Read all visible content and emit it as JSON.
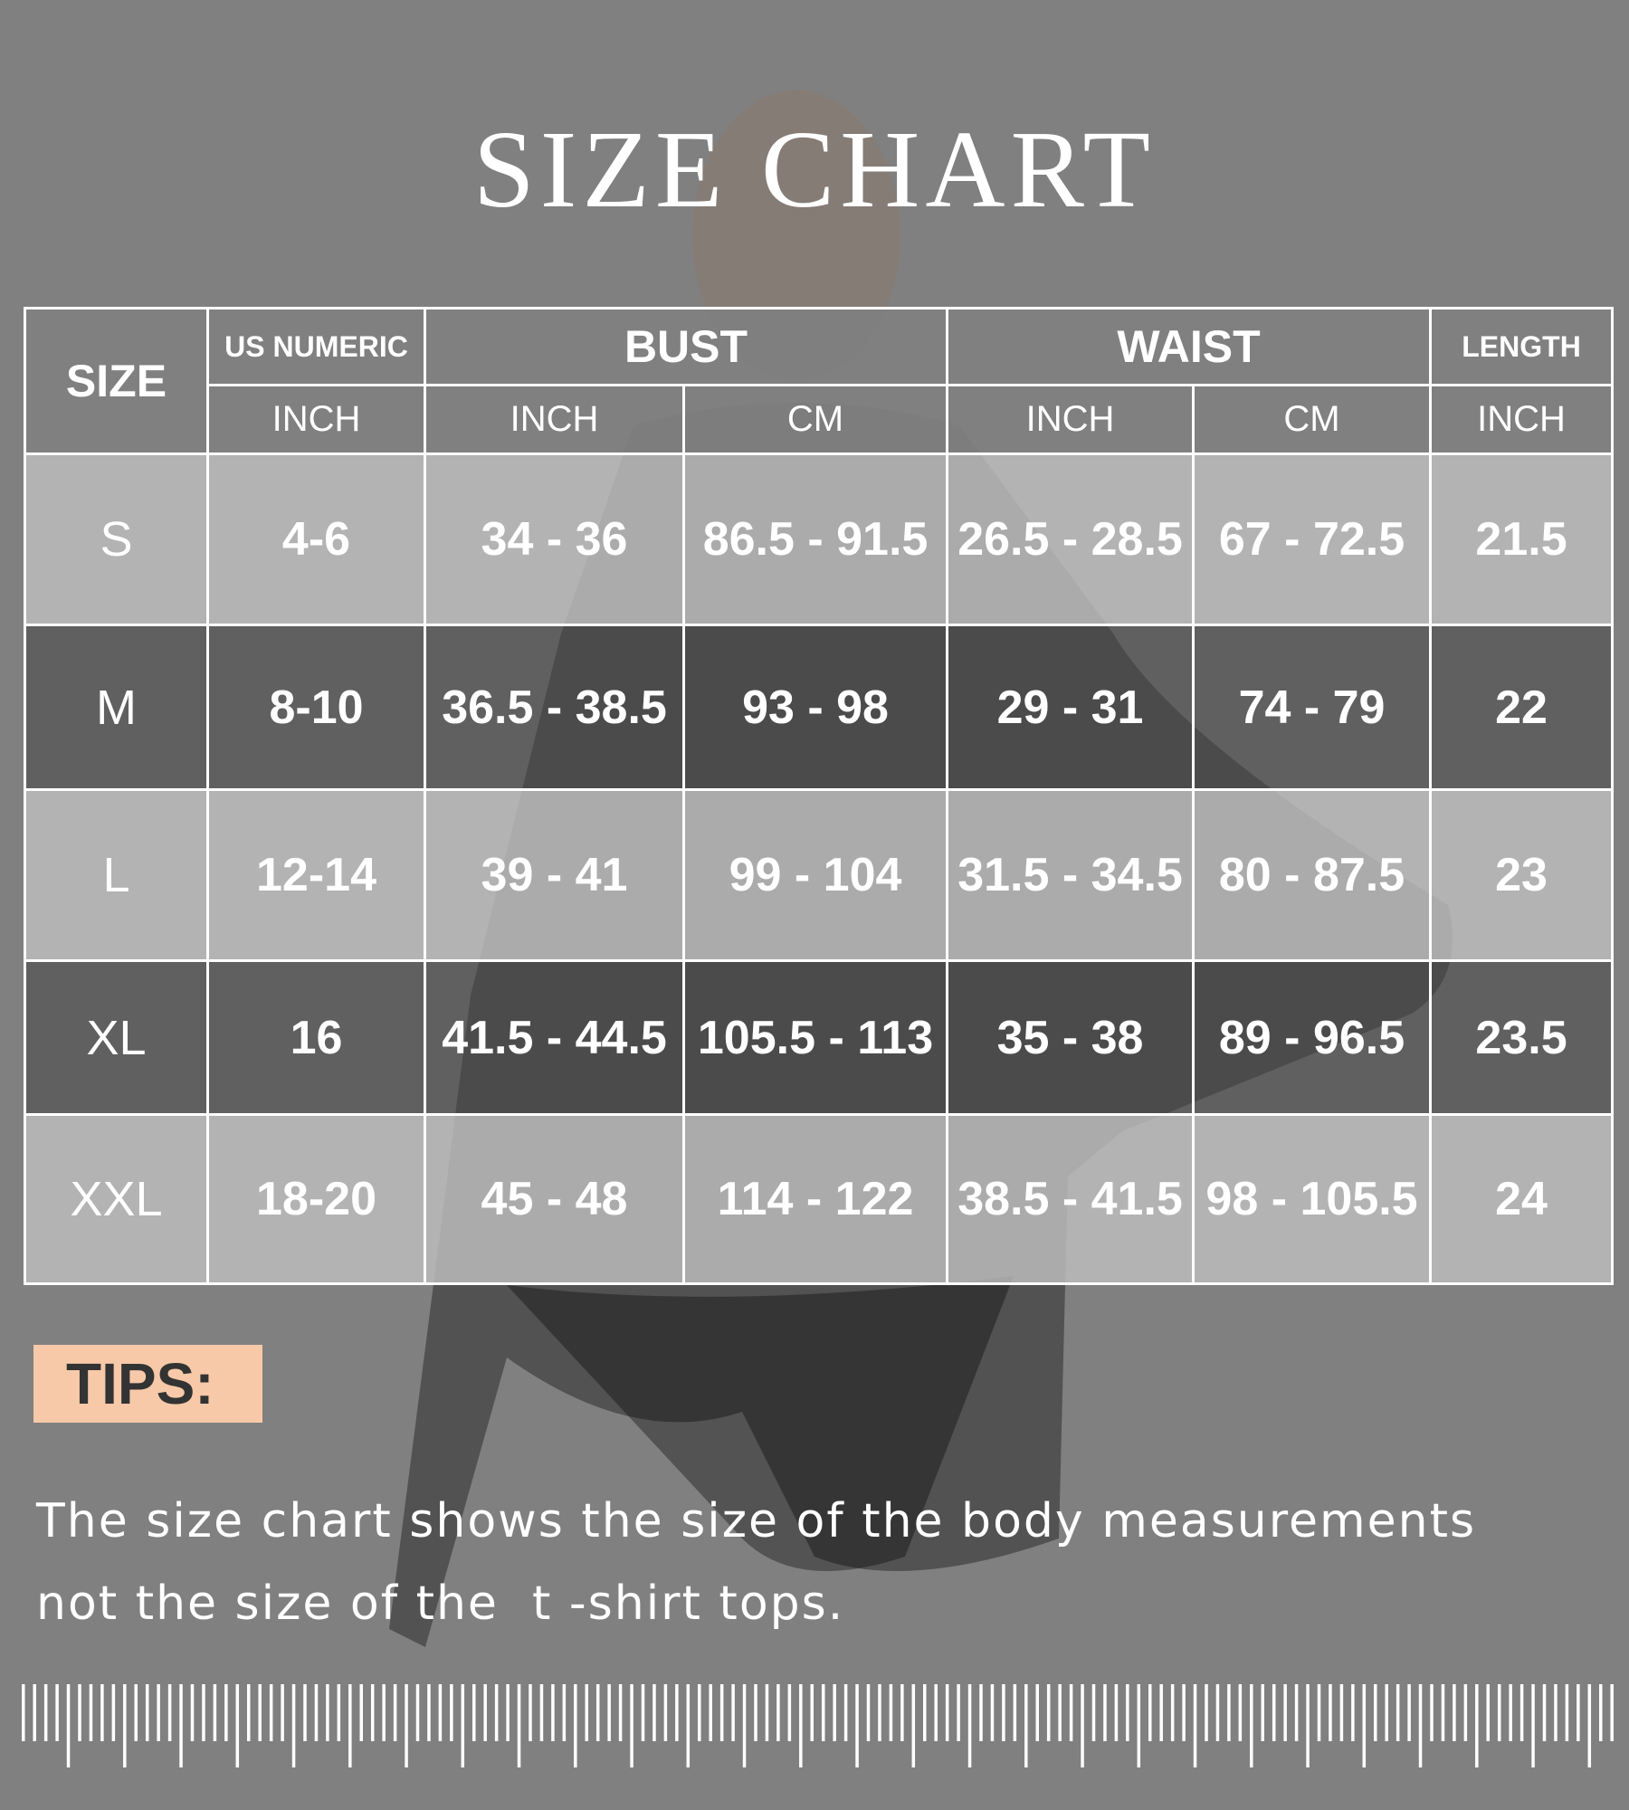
{
  "title": "SIZE CHART",
  "table": {
    "headers": {
      "size": "SIZE",
      "us_numeric": "US NUMERIC",
      "bust": "BUST",
      "waist": "WAIST",
      "length": "LENGTH",
      "units": [
        "INCH",
        "INCH",
        "CM",
        "INCH",
        "CM",
        "INCH"
      ]
    },
    "rows": [
      {
        "size": "S",
        "us": "4-6",
        "bust_in": "34 - 36",
        "bust_cm": "86.5 - 91.5",
        "waist_in": "26.5 - 28.5",
        "waist_cm": "67 - 72.5",
        "length_in": "21.5"
      },
      {
        "size": "M",
        "us": "8-10",
        "bust_in": "36.5 - 38.5",
        "bust_cm": "93 - 98",
        "waist_in": "29 - 31",
        "waist_cm": "74 - 79",
        "length_in": "22"
      },
      {
        "size": "L",
        "us": "12-14",
        "bust_in": "39 - 41",
        "bust_cm": "99 - 104",
        "waist_in": "31.5 - 34.5",
        "waist_cm": "80 - 87.5",
        "length_in": "23"
      },
      {
        "size": "XL",
        "us": "16",
        "bust_in": "41.5 - 44.5",
        "bust_cm": "105.5 - 113",
        "waist_in": "35 - 38",
        "waist_cm": "89 - 96.5",
        "length_in": "23.5"
      },
      {
        "size": "XXL",
        "us": "18-20",
        "bust_in": "45 - 48",
        "bust_cm": "114 - 122",
        "waist_in": "38.5 - 41.5",
        "waist_cm": "98 - 105.5",
        "length_in": "24"
      }
    ]
  },
  "tips": {
    "label": "TIPS:",
    "line1": "The size chart shows the size of the body measurements",
    "line2": "not the size of the  t -shirt tops."
  },
  "colors": {
    "background": "#808080",
    "tips_box": "#f7c9a8",
    "text": "#ffffff"
  }
}
